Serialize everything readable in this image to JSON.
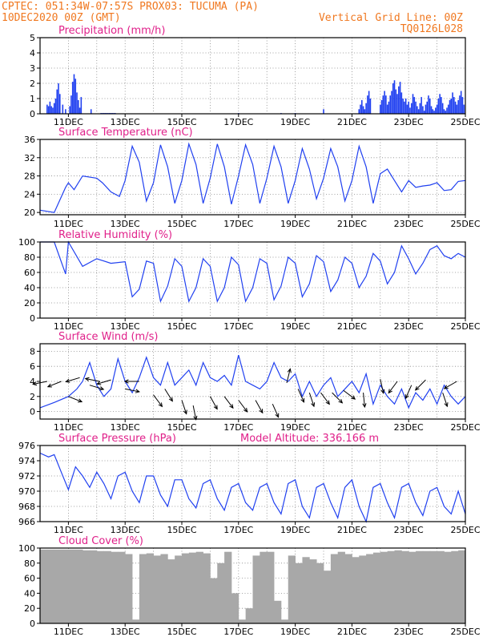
{
  "header": {
    "line1_left": "CPTEC:   051:34W-07:57S   PROX03: TUCUMA (PA)",
    "line2_left": "10DEC2020 00Z (GMT)",
    "line2_right": "Vertical Grid Line: 00Z",
    "line3_right": "TQ0126L028",
    "color": "#f07820"
  },
  "chart_data": [
    {
      "type": "bar",
      "title": "Precipitation (mm/h)",
      "ylim": [
        0,
        5
      ],
      "yticks": [
        "0",
        "1",
        "2",
        "3",
        "4",
        "5"
      ],
      "xticks": [
        "11DEC",
        "13DEC",
        "15DEC",
        "17DEC",
        "19DEC",
        "21DEC",
        "23DEC",
        "25DEC"
      ],
      "grid": true,
      "color": "#2040f0",
      "x_days": [
        0.25,
        0.3,
        0.35,
        0.4,
        0.45,
        0.5,
        0.55,
        0.6,
        0.65,
        0.7,
        0.8,
        0.9,
        1.05,
        1.1,
        1.15,
        1.2,
        1.25,
        1.3,
        1.35,
        1.4,
        1.45,
        1.8,
        2.15,
        2.2,
        2.25,
        2.3,
        2.35,
        2.4,
        2.45,
        2.5,
        2.55,
        2.6,
        2.65,
        7.0,
        8.5,
        9.0,
        10.0,
        11.25,
        11.3,
        11.35,
        11.4,
        11.45,
        11.5,
        11.55,
        11.6,
        11.65,
        12.0,
        12.05,
        12.1,
        12.15,
        12.2,
        12.25,
        12.3,
        12.35,
        12.4,
        12.45,
        12.5,
        12.55,
        12.6,
        12.65,
        12.7,
        12.75,
        12.8,
        12.85,
        12.9,
        12.95,
        13.0,
        13.05,
        13.1,
        13.15,
        13.2,
        13.25,
        13.3,
        13.35,
        13.4,
        13.45,
        13.5,
        13.55,
        13.6,
        13.65,
        13.7,
        13.75,
        13.8,
        13.85,
        13.9,
        13.95,
        14.0,
        14.05,
        14.1,
        14.15,
        14.2,
        14.25,
        14.3,
        14.35,
        14.4,
        14.45,
        14.5,
        14.55,
        14.6,
        14.65,
        14.7,
        14.75,
        14.8,
        14.85,
        14.9,
        14.95
      ],
      "values": [
        0.6,
        0.5,
        0.8,
        0.5,
        0.4,
        0.7,
        1.0,
        1.6,
        2.0,
        1.3,
        0.6,
        0.3,
        0.5,
        1.2,
        2.1,
        2.6,
        2.3,
        1.4,
        0.9,
        0.4,
        1.1,
        0.3,
        0.05,
        0.05,
        0.05,
        0.05,
        0.05,
        0.05,
        0.05,
        0.05,
        0.05,
        0.05,
        0.05,
        0.05,
        0.05,
        0.05,
        0.3,
        0.3,
        0.6,
        0.9,
        0.5,
        0.3,
        0.7,
        1.2,
        1.5,
        1.0,
        0.6,
        0.9,
        1.2,
        1.5,
        1.2,
        0.6,
        0.8,
        1.2,
        1.5,
        2.0,
        2.2,
        1.6,
        1.3,
        1.8,
        2.1,
        1.4,
        1.0,
        0.8,
        1.0,
        0.6,
        0.8,
        0.4,
        0.7,
        1.3,
        1.1,
        0.8,
        0.5,
        0.3,
        0.7,
        1.1,
        0.5,
        0.2,
        0.6,
        0.8,
        1.2,
        1.0,
        0.5,
        0.3,
        0.2,
        0.4,
        0.6,
        1.0,
        1.3,
        1.1,
        0.7,
        0.3,
        0.2,
        0.4,
        0.6,
        0.9,
        1.0,
        1.4,
        1.1,
        0.8,
        0.6,
        0.9,
        1.2,
        1.5,
        1.1,
        0.6
      ]
    },
    {
      "type": "line",
      "title": "Surface Temperature (nC)",
      "ylim": [
        19.5,
        36
      ],
      "yticks": [
        "20",
        "24",
        "28",
        "32",
        "36"
      ],
      "xticks": [
        "11DEC",
        "13DEC",
        "15DEC",
        "17DEC",
        "19DEC",
        "21DEC",
        "23DEC",
        "25DEC"
      ],
      "grid": true,
      "color": "#2040f0",
      "x_days": [
        0,
        0.5,
        0.9,
        1.0,
        1.2,
        1.5,
        2.0,
        2.2,
        2.5,
        2.8,
        3.0,
        3.25,
        3.5,
        3.75,
        4.0,
        4.25,
        4.5,
        4.75,
        5.0,
        5.25,
        5.5,
        5.75,
        6.0,
        6.25,
        6.5,
        6.75,
        7.0,
        7.25,
        7.5,
        7.75,
        8.0,
        8.25,
        8.5,
        8.75,
        9.0,
        9.25,
        9.5,
        9.75,
        10.0,
        10.25,
        10.5,
        10.75,
        11.0,
        11.25,
        11.5,
        11.75,
        12.0,
        12.25,
        12.5,
        12.75,
        13.0,
        13.25,
        13.5,
        13.75,
        14.0,
        14.25,
        14.5,
        14.75,
        15.0
      ],
      "values": [
        20.5,
        20.0,
        25.5,
        26.5,
        25.0,
        28.0,
        27.5,
        26.5,
        24.5,
        23.5,
        27.0,
        34.5,
        31.0,
        22.5,
        26.5,
        34.8,
        30.0,
        22.0,
        27.0,
        35.0,
        30.5,
        22.0,
        27.5,
        35.0,
        30.0,
        21.8,
        28.0,
        34.8,
        30.5,
        22.0,
        27.5,
        34.5,
        30.0,
        22.0,
        27.0,
        34.0,
        29.5,
        23.0,
        27.5,
        34.0,
        30.0,
        22.5,
        27.0,
        34.5,
        30.0,
        22.0,
        28.5,
        29.5,
        27.0,
        24.5,
        27.0,
        25.5,
        25.8,
        26.0,
        26.5,
        24.8,
        25.0,
        26.8,
        27.0
      ]
    },
    {
      "type": "line",
      "title": "Relative Humidity (%)",
      "ylim": [
        0,
        100
      ],
      "yticks": [
        "0",
        "20",
        "40",
        "60",
        "80",
        "100"
      ],
      "xticks": [
        "11DEC",
        "13DEC",
        "15DEC",
        "17DEC",
        "19DEC",
        "21DEC",
        "23DEC",
        "25DEC"
      ],
      "grid": true,
      "color": "#2040f0",
      "x_days": [
        0,
        0.5,
        0.9,
        1.0,
        1.5,
        2.0,
        2.5,
        3.0,
        3.25,
        3.5,
        3.75,
        4.0,
        4.25,
        4.5,
        4.75,
        5.0,
        5.25,
        5.5,
        5.75,
        6.0,
        6.25,
        6.5,
        6.75,
        7.0,
        7.25,
        7.5,
        7.75,
        8.0,
        8.25,
        8.5,
        8.75,
        9.0,
        9.25,
        9.5,
        9.75,
        10.0,
        10.25,
        10.5,
        10.75,
        11.0,
        11.25,
        11.5,
        11.75,
        12.0,
        12.25,
        12.5,
        12.75,
        13.0,
        13.25,
        13.5,
        13.75,
        14.0,
        14.25,
        14.5,
        14.75,
        15.0
      ],
      "values": [
        100,
        100,
        58,
        100,
        68,
        78,
        72,
        74,
        28,
        38,
        75,
        72,
        22,
        42,
        78,
        68,
        22,
        40,
        78,
        68,
        22,
        40,
        80,
        70,
        22,
        40,
        78,
        72,
        24,
        42,
        80,
        72,
        28,
        45,
        82,
        74,
        35,
        50,
        80,
        72,
        40,
        55,
        85,
        75,
        45,
        60,
        95,
        78,
        58,
        72,
        90,
        95,
        82,
        78,
        85,
        80
      ]
    },
    {
      "type": "line",
      "title": "Surface Wind (m/s)",
      "ylim": [
        -1,
        9
      ],
      "yticks": [
        "0",
        "2",
        "4",
        "6",
        "8"
      ],
      "xticks": [
        "11DEC",
        "13DEC",
        "15DEC",
        "17DEC",
        "19DEC",
        "21DEC",
        "23DEC",
        "25DEC"
      ],
      "grid": true,
      "color": "#2040f0",
      "x_days": [
        0,
        0.5,
        1.0,
        1.3,
        1.5,
        1.75,
        2.0,
        2.25,
        2.5,
        2.75,
        3.0,
        3.25,
        3.5,
        3.75,
        4.0,
        4.25,
        4.5,
        4.75,
        5.0,
        5.25,
        5.5,
        5.75,
        6.0,
        6.25,
        6.5,
        6.75,
        7.0,
        7.25,
        7.5,
        7.75,
        8.0,
        8.25,
        8.5,
        8.75,
        9.0,
        9.25,
        9.5,
        9.75,
        10.0,
        10.25,
        10.5,
        10.75,
        11.0,
        11.25,
        11.5,
        11.75,
        12.0,
        12.25,
        12.5,
        12.75,
        13.0,
        13.25,
        13.5,
        13.75,
        14.0,
        14.25,
        14.5,
        14.75,
        15.0
      ],
      "values": [
        0.5,
        1.2,
        2.0,
        3.0,
        4.0,
        6.5,
        3.5,
        2.0,
        3.0,
        7.0,
        4.0,
        2.5,
        4.5,
        7.2,
        4.5,
        3.5,
        6.5,
        3.5,
        4.5,
        5.5,
        3.5,
        6.5,
        4.5,
        4.0,
        4.8,
        3.5,
        7.5,
        4.0,
        3.5,
        3.0,
        4.0,
        6.5,
        4.5,
        4.0,
        5.0,
        2.0,
        4.0,
        2.0,
        3.5,
        4.5,
        2.0,
        3.0,
        4.0,
        2.5,
        5.0,
        1.0,
        3.5,
        2.0,
        1.0,
        3.0,
        0.5,
        2.5,
        1.5,
        3.0,
        1.0,
        3.5,
        2.0,
        1.0,
        2.0
      ]
    },
    {
      "type": "line",
      "title": "Surface Pressure (hPa)",
      "subtitle": "Model Altitude: 336.166 m",
      "ylim": [
        966,
        976
      ],
      "yticks": [
        "966",
        "968",
        "970",
        "972",
        "974",
        "976"
      ],
      "xticks": [
        "11DEC",
        "13DEC",
        "15DEC",
        "17DEC",
        "19DEC",
        "21DEC",
        "23DEC",
        "25DEC"
      ],
      "grid": true,
      "color": "#2040f0",
      "x_days": [
        0,
        0.3,
        0.5,
        0.75,
        1.0,
        1.25,
        1.5,
        1.75,
        2.0,
        2.25,
        2.5,
        2.75,
        3.0,
        3.25,
        3.5,
        3.75,
        4.0,
        4.25,
        4.5,
        4.75,
        5.0,
        5.25,
        5.5,
        5.75,
        6.0,
        6.25,
        6.5,
        6.75,
        7.0,
        7.25,
        7.5,
        7.75,
        8.0,
        8.25,
        8.5,
        8.75,
        9.0,
        9.25,
        9.5,
        9.75,
        10.0,
        10.25,
        10.5,
        10.75,
        11.0,
        11.25,
        11.5,
        11.75,
        12.0,
        12.25,
        12.5,
        12.75,
        13.0,
        13.25,
        13.5,
        13.75,
        14.0,
        14.25,
        14.5,
        14.75,
        15.0
      ],
      "values": [
        975.0,
        974.5,
        974.8,
        972.5,
        970.2,
        973.2,
        972.0,
        970.5,
        972.5,
        971.0,
        969.0,
        972.0,
        972.5,
        970.0,
        968.5,
        972.0,
        972.0,
        969.5,
        968.0,
        971.5,
        971.5,
        969.0,
        967.8,
        971.0,
        971.5,
        969.0,
        967.5,
        970.5,
        971.0,
        968.5,
        967.5,
        970.5,
        971.0,
        968.5,
        967.0,
        971.0,
        971.5,
        968.0,
        966.5,
        970.5,
        971.0,
        968.5,
        966.5,
        970.5,
        971.5,
        968.0,
        966.0,
        970.5,
        971.0,
        968.5,
        966.5,
        970.5,
        971.0,
        968.5,
        966.8,
        970.0,
        970.5,
        968.0,
        967.0,
        970.0,
        967.0
      ]
    },
    {
      "type": "bar",
      "title": "Cloud Cover (%)",
      "ylim": [
        0,
        100
      ],
      "yticks": [
        "0",
        "20",
        "40",
        "60",
        "80",
        "100"
      ],
      "xticks": [
        "11DEC",
        "13DEC",
        "15DEC",
        "17DEC",
        "19DEC",
        "21DEC",
        "23DEC",
        "25DEC"
      ],
      "grid": true,
      "color": "#a8a8a8",
      "x_days": [
        0,
        0.25,
        0.5,
        0.75,
        1.0,
        1.25,
        1.5,
        1.75,
        2.0,
        2.25,
        2.5,
        2.75,
        3.0,
        3.25,
        3.5,
        3.75,
        4.0,
        4.25,
        4.5,
        4.75,
        5.0,
        5.25,
        5.5,
        5.75,
        6.0,
        6.25,
        6.5,
        6.75,
        7.0,
        7.25,
        7.5,
        7.75,
        8.0,
        8.25,
        8.5,
        8.75,
        9.0,
        9.25,
        9.5,
        9.75,
        10.0,
        10.25,
        10.5,
        10.75,
        11.0,
        11.25,
        11.5,
        11.75,
        12.0,
        12.25,
        12.5,
        12.75,
        13.0,
        13.25,
        13.5,
        13.75,
        14.0,
        14.25,
        14.5,
        14.75
      ],
      "values": [
        98,
        98,
        98,
        98,
        98,
        98,
        97,
        97,
        96,
        96,
        95,
        95,
        92,
        5,
        92,
        93,
        90,
        92,
        85,
        90,
        93,
        94,
        95,
        93,
        60,
        80,
        95,
        40,
        5,
        20,
        90,
        95,
        95,
        30,
        5,
        90,
        80,
        88,
        85,
        80,
        70,
        92,
        95,
        92,
        88,
        90,
        92,
        94,
        95,
        96,
        97,
        96,
        95,
        96,
        96,
        96,
        96,
        95,
        96,
        97
      ]
    }
  ],
  "wind_arrows": [
    {
      "x": 0.25,
      "y": 4,
      "u": -1,
      "v": 0.2
    },
    {
      "x": 0.75,
      "y": 4,
      "u": -1,
      "v": 0.4
    },
    {
      "x": 1.0,
      "y": 2.0,
      "u": 1,
      "v": 0.4
    },
    {
      "x": 1.4,
      "y": 4.5,
      "u": -1,
      "v": 0.3
    },
    {
      "x": 1.75,
      "y": 3.5,
      "u": 1,
      "v": 0.3
    },
    {
      "x": 2.1,
      "y": 4.0,
      "u": -1,
      "v": -0.2
    },
    {
      "x": 2.5,
      "y": 4.2,
      "u": -1,
      "v": 0.3
    },
    {
      "x": 3.0,
      "y": 3.0,
      "u": 1,
      "v": 0.2
    },
    {
      "x": 3.5,
      "y": 4.0,
      "u": -1,
      "v": 0
    },
    {
      "x": 4.0,
      "y": 2.2,
      "u": 0.6,
      "v": 0.8
    },
    {
      "x": 4.4,
      "y": 3.0,
      "u": 0.5,
      "v": 0.8
    },
    {
      "x": 5.0,
      "y": 1.5,
      "u": 0.3,
      "v": 0.9
    },
    {
      "x": 5.4,
      "y": 0.8,
      "u": 0.2,
      "v": 1
    },
    {
      "x": 6.0,
      "y": 2.0,
      "u": 0.5,
      "v": 0.9
    },
    {
      "x": 6.5,
      "y": 2.0,
      "u": 0.6,
      "v": 0.8
    },
    {
      "x": 7.0,
      "y": 1.5,
      "u": 0.6,
      "v": 0.8
    },
    {
      "x": 7.6,
      "y": 1.5,
      "u": 0.5,
      "v": 0.9
    },
    {
      "x": 8.2,
      "y": 1.0,
      "u": 0.4,
      "v": 0.9
    },
    {
      "x": 8.7,
      "y": 3.8,
      "u": 0.2,
      "v": -0.8
    },
    {
      "x": 9.1,
      "y": 3.0,
      "u": 0.4,
      "v": 0.9
    },
    {
      "x": 9.5,
      "y": 2.5,
      "u": 0.3,
      "v": 0.9
    },
    {
      "x": 9.9,
      "y": 2.5,
      "u": 0.6,
      "v": 0.8
    },
    {
      "x": 10.3,
      "y": 2.5,
      "u": 0.7,
      "v": 0.7
    },
    {
      "x": 10.7,
      "y": 2.8,
      "u": 0.8,
      "v": 0.6
    },
    {
      "x": 11.4,
      "y": 2.5,
      "u": 0.1,
      "v": 1
    },
    {
      "x": 12.0,
      "y": 4.3,
      "u": 0.2,
      "v": 0.9
    },
    {
      "x": 12.6,
      "y": 4.0,
      "u": -0.6,
      "v": 0.8
    },
    {
      "x": 13.1,
      "y": 3.5,
      "u": -0.4,
      "v": 0.9
    },
    {
      "x": 13.6,
      "y": 4.2,
      "u": -0.5,
      "v": 0.5
    },
    {
      "x": 14.2,
      "y": 2.5,
      "u": 0.3,
      "v": 0.9
    },
    {
      "x": 14.7,
      "y": 4.0,
      "u": -0.7,
      "v": 0.4
    }
  ]
}
